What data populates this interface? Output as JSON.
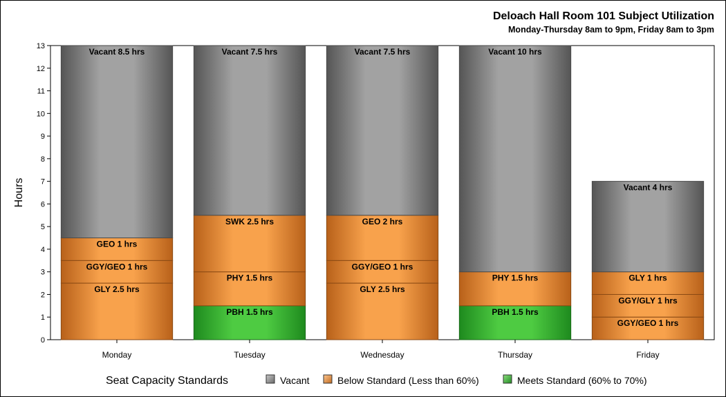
{
  "chart_data": {
    "type": "bar",
    "stacked": true,
    "title": "Deloach Hall Room 101 Subject Utilization",
    "subtitle": "Monday-Thursday 8am to 9pm, Friday 8am to 3pm",
    "xlabel": "",
    "ylabel": "Hours",
    "ylim": [
      0,
      13
    ],
    "yticks": [
      0,
      1,
      2,
      3,
      4,
      5,
      6,
      7,
      8,
      9,
      10,
      11,
      12,
      13
    ],
    "categories": [
      "Monday",
      "Tuesday",
      "Wednesday",
      "Thursday",
      "Friday"
    ],
    "grid": false,
    "legend": {
      "position": "bottom",
      "title": "Seat Capacity Standards",
      "entries": [
        {
          "name": "Vacant",
          "color": "#a0a0a0"
        },
        {
          "name": "Below Standard (Less than 60%)",
          "color": "#f7a14a"
        },
        {
          "name": "Meets Standard (60% to 70%)",
          "color": "#4cc840"
        }
      ]
    },
    "bars": [
      {
        "category": "Monday",
        "segments": [
          {
            "label": "GLY 2.5 hrs",
            "value": 2.5,
            "standard": "Below Standard (Less than 60%)"
          },
          {
            "label": "GGY/GEO 1 hrs",
            "value": 1,
            "standard": "Below Standard (Less than 60%)"
          },
          {
            "label": "GEO 1 hrs",
            "value": 1,
            "standard": "Below Standard (Less than 60%)"
          },
          {
            "label": "Vacant 8.5 hrs",
            "value": 8.5,
            "standard": "Vacant"
          }
        ]
      },
      {
        "category": "Tuesday",
        "segments": [
          {
            "label": "PBH 1.5 hrs",
            "value": 1.5,
            "standard": "Meets Standard (60% to 70%)"
          },
          {
            "label": "PHY 1.5 hrs",
            "value": 1.5,
            "standard": "Below Standard (Less than 60%)"
          },
          {
            "label": "SWK 2.5 hrs",
            "value": 2.5,
            "standard": "Below Standard (Less than 60%)"
          },
          {
            "label": "Vacant 7.5 hrs",
            "value": 7.5,
            "standard": "Vacant"
          }
        ]
      },
      {
        "category": "Wednesday",
        "segments": [
          {
            "label": "GLY 2.5 hrs",
            "value": 2.5,
            "standard": "Below Standard (Less than 60%)"
          },
          {
            "label": "GGY/GEO 1 hrs",
            "value": 1,
            "standard": "Below Standard (Less than 60%)"
          },
          {
            "label": "GEO 2 hrs",
            "value": 2,
            "standard": "Below Standard (Less than 60%)"
          },
          {
            "label": "Vacant 7.5 hrs",
            "value": 7.5,
            "standard": "Vacant"
          }
        ]
      },
      {
        "category": "Thursday",
        "segments": [
          {
            "label": "PBH 1.5 hrs",
            "value": 1.5,
            "standard": "Meets Standard (60% to 70%)"
          },
          {
            "label": "PHY 1.5 hrs",
            "value": 1.5,
            "standard": "Below Standard (Less than 60%)"
          },
          {
            "label": "Vacant 10 hrs",
            "value": 10,
            "standard": "Vacant"
          }
        ]
      },
      {
        "category": "Friday",
        "segments": [
          {
            "label": "GGY/GEO 1 hrs",
            "value": 1,
            "standard": "Below Standard (Less than 60%)"
          },
          {
            "label": "GGY/GLY 1 hrs",
            "value": 1,
            "standard": "Below Standard (Less than 60%)"
          },
          {
            "label": "GLY 1 hrs",
            "value": 1,
            "standard": "Below Standard (Less than 60%)"
          },
          {
            "label": "Vacant 4 hrs",
            "value": 4,
            "standard": "Vacant"
          }
        ]
      }
    ]
  }
}
